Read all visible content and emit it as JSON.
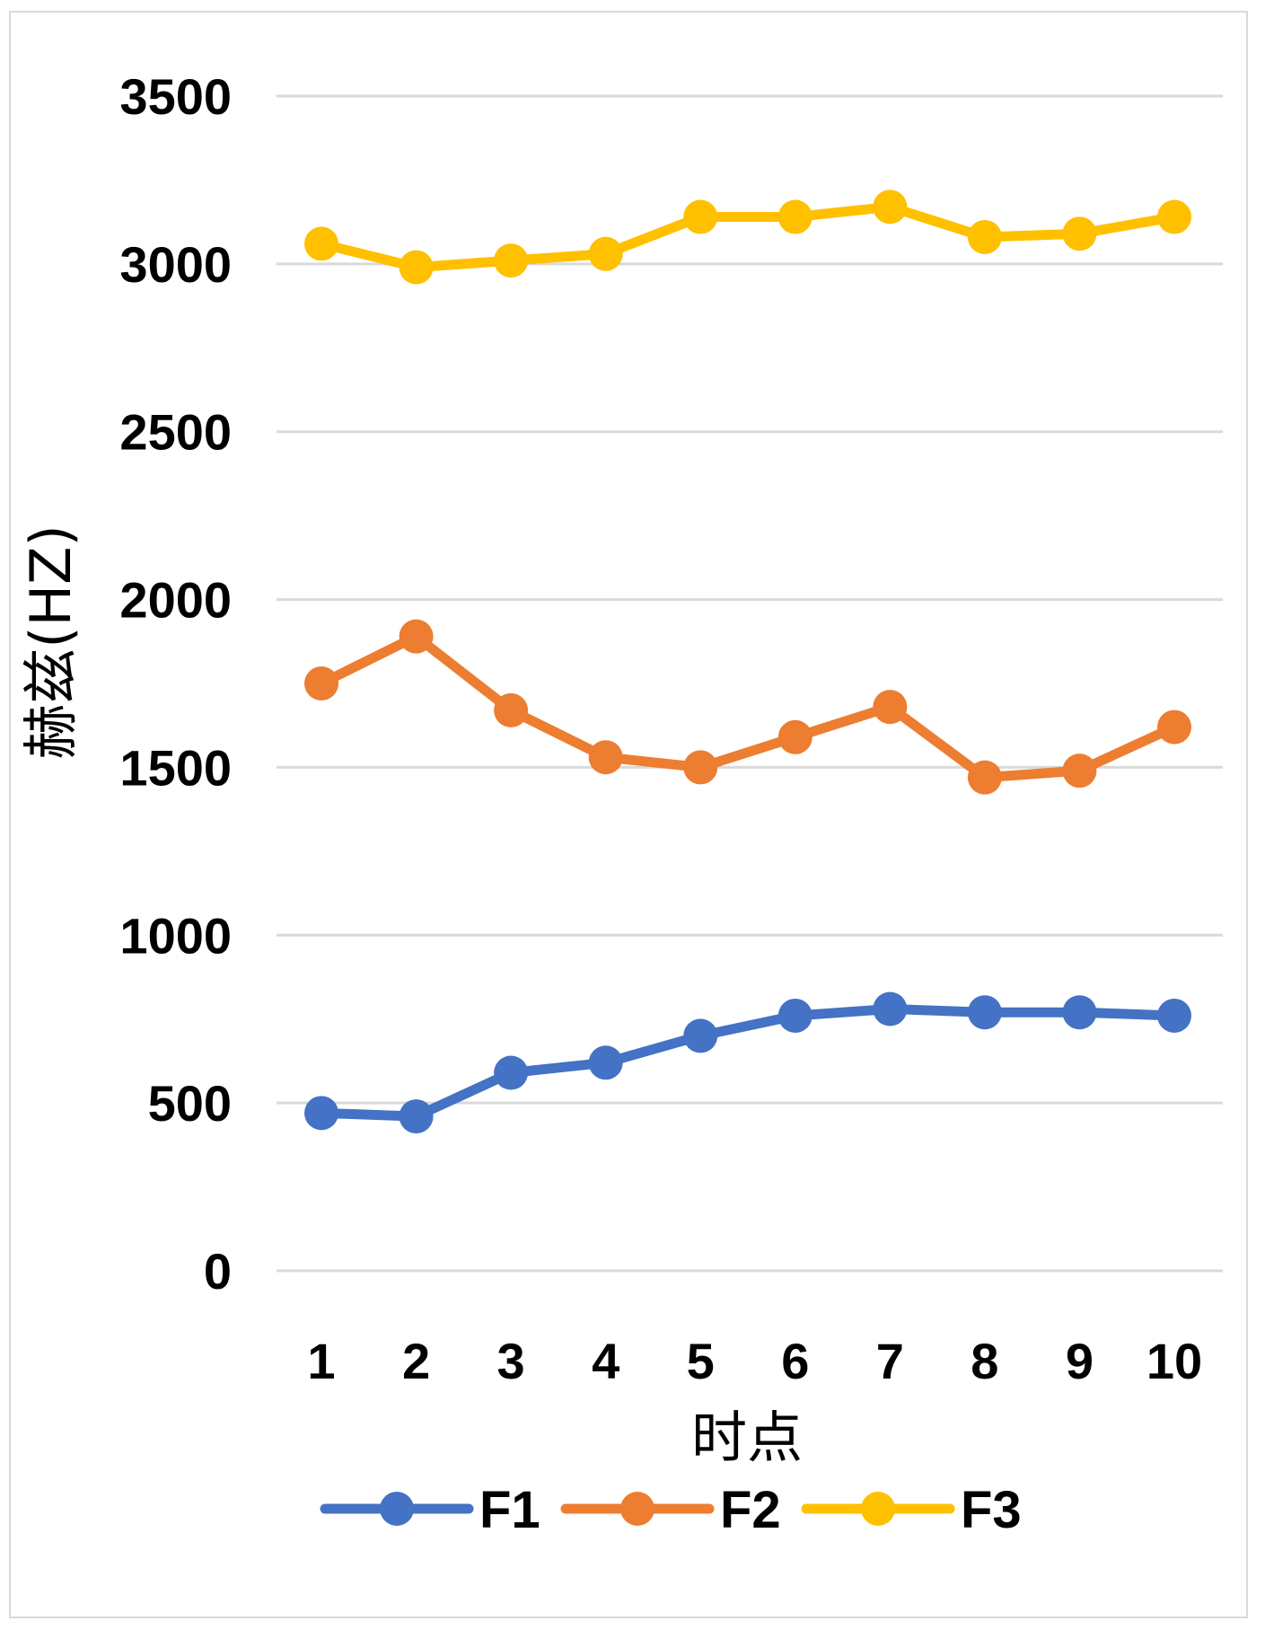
{
  "chart_data": {
    "type": "line",
    "title": "",
    "xlabel": "时点",
    "ylabel": "赫兹(HZ)",
    "categories": [
      "1",
      "2",
      "3",
      "4",
      "5",
      "6",
      "7",
      "8",
      "9",
      "10"
    ],
    "ylim": [
      0,
      3500
    ],
    "yticks": [
      "0",
      "500",
      "1000",
      "1500",
      "2000",
      "2500",
      "3000",
      "3500"
    ],
    "grid": true,
    "legend_position": "bottom",
    "series": [
      {
        "name": "F1",
        "color": "#4472C4",
        "values": [
          470,
          460,
          590,
          620,
          700,
          760,
          780,
          770,
          770,
          760
        ]
      },
      {
        "name": "F2",
        "color": "#ED7D31",
        "values": [
          1750,
          1890,
          1670,
          1530,
          1500,
          1590,
          1680,
          1470,
          1490,
          1620
        ]
      },
      {
        "name": "F3",
        "color": "#FFC000",
        "values": [
          3060,
          2990,
          3010,
          3030,
          3140,
          3140,
          3170,
          3080,
          3090,
          3140
        ]
      }
    ]
  }
}
